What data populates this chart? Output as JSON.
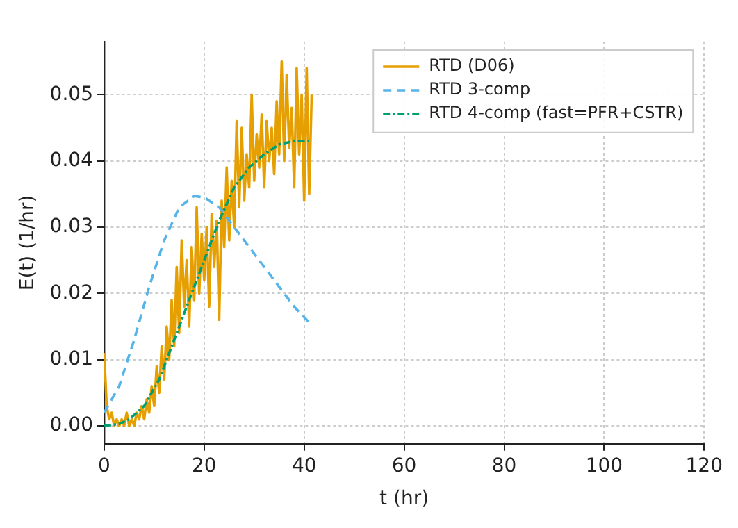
{
  "chart_data": {
    "type": "line",
    "xlabel": "t (hr)",
    "ylabel": "E(t) (1/hr)",
    "xlim": [
      0,
      120
    ],
    "xticks": [
      0,
      20,
      40,
      60,
      80,
      100,
      120
    ],
    "ylim": [
      -0.0027,
      0.058
    ],
    "yticks": [
      {
        "value": 0,
        "label": "0.00"
      },
      0.01,
      0.02,
      0.03,
      0.04,
      0.05
    ],
    "grid": true,
    "legend": "top right",
    "marker": "none",
    "series": [
      {
        "name": "RTD (D06)",
        "color": "#e69f00",
        "line_style": "solid",
        "x": [
          0,
          0.5,
          1,
          1.5,
          2,
          2.5,
          3,
          3.5,
          4,
          4.5,
          5,
          5.5,
          6,
          6.5,
          7,
          7.5,
          8,
          8.5,
          9,
          9.5,
          10,
          10.5,
          11,
          11.5,
          12,
          12.5,
          13,
          13.5,
          14,
          14.5,
          15,
          15.5,
          16,
          16.5,
          17,
          17.5,
          18,
          18.5,
          19,
          19.5,
          20,
          20.5,
          21,
          21.5,
          22,
          22.5,
          23,
          23.5,
          24,
          24.5,
          25,
          25.5,
          26,
          26.5,
          27,
          27.5,
          28,
          28.5,
          29,
          29.5,
          30,
          30.5,
          31,
          31.5,
          32,
          32.5,
          33,
          33.5,
          34,
          34.5,
          35,
          35.5,
          36,
          36.5,
          37,
          37.5,
          38,
          38.5,
          39,
          39.5,
          40,
          40.5,
          41,
          41.5
        ],
        "values": [
          0.011,
          0.003,
          0.001,
          0.002,
          0.0,
          0.001,
          0.0,
          0.001,
          0.0,
          0.002,
          0.0,
          0.001,
          0.0,
          0.002,
          0.001,
          0.003,
          0.001,
          0.004,
          0.002,
          0.006,
          0.003,
          0.009,
          0.005,
          0.012,
          0.007,
          0.015,
          0.01,
          0.019,
          0.012,
          0.024,
          0.014,
          0.028,
          0.018,
          0.025,
          0.015,
          0.027,
          0.019,
          0.033,
          0.02,
          0.029,
          0.022,
          0.03,
          0.018,
          0.032,
          0.024,
          0.031,
          0.016,
          0.034,
          0.027,
          0.039,
          0.028,
          0.037,
          0.03,
          0.046,
          0.033,
          0.045,
          0.034,
          0.041,
          0.036,
          0.05,
          0.037,
          0.044,
          0.039,
          0.047,
          0.036,
          0.046,
          0.04,
          0.045,
          0.038,
          0.049,
          0.041,
          0.055,
          0.04,
          0.053,
          0.042,
          0.048,
          0.036,
          0.054,
          0.041,
          0.05,
          0.034,
          0.054,
          0.035,
          0.05
        ]
      },
      {
        "name": "RTD 3-comp",
        "color": "#56b4e9",
        "line_style": "dashed",
        "x": [
          0,
          3,
          6,
          9,
          12,
          15,
          18,
          20,
          23,
          27,
          31,
          35,
          38,
          41.5
        ],
        "values": [
          0.002,
          0.006,
          0.013,
          0.021,
          0.028,
          0.033,
          0.0347,
          0.0345,
          0.033,
          0.029,
          0.025,
          0.021,
          0.018,
          0.0152
        ]
      },
      {
        "name": "RTD 4-comp (fast=PFR+CSTR)",
        "color": "#009e73",
        "line_style": "dashdot",
        "x": [
          0,
          3,
          5,
          8,
          11,
          14,
          17,
          20,
          23,
          26,
          29,
          32,
          35,
          38,
          41
        ],
        "values": [
          0.0,
          0.0003,
          0.001,
          0.003,
          0.007,
          0.013,
          0.019,
          0.025,
          0.031,
          0.036,
          0.039,
          0.041,
          0.0425,
          0.043,
          0.043
        ]
      }
    ]
  }
}
